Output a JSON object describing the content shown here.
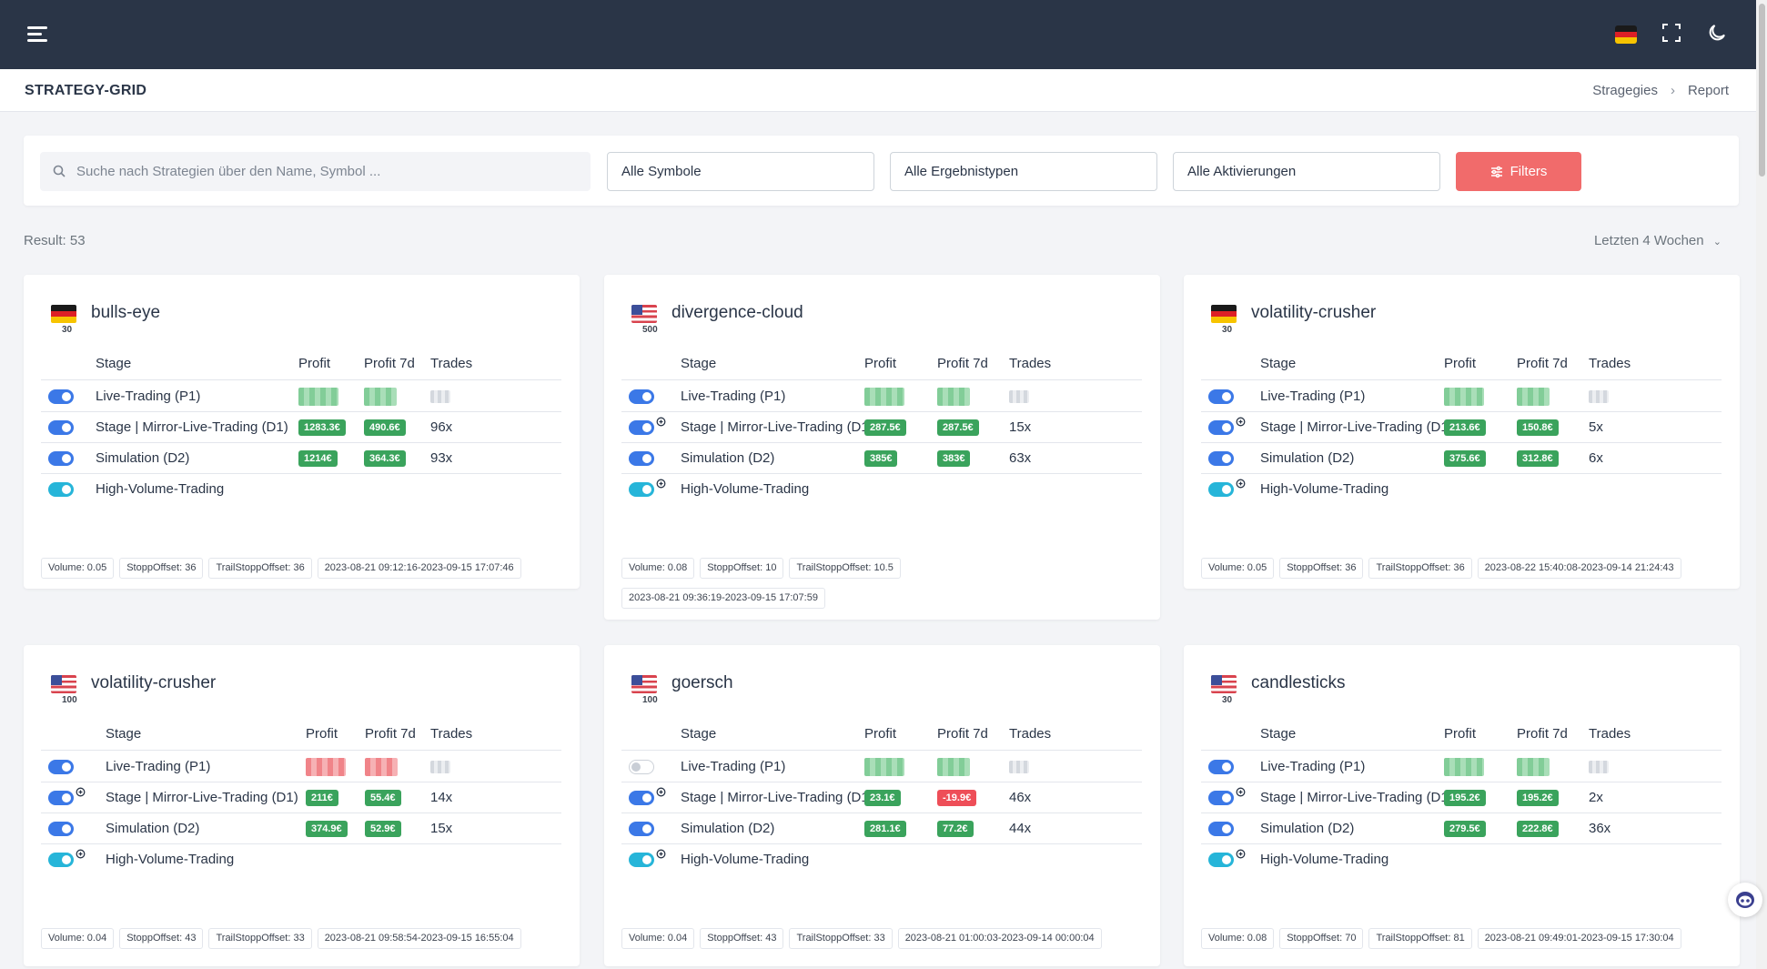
{
  "header": {
    "menu_icon": "hamburger-icon",
    "language_flag": "flag-de-icon",
    "fullscreen_icon": "fullscreen-icon",
    "theme_icon": "moon-icon"
  },
  "page": {
    "title": "STRATEGY-GRID",
    "breadcrumb": [
      "Stragegies",
      "Report"
    ]
  },
  "filters": {
    "search_placeholder": "Suche nach Strategien über den Name, Symbol ...",
    "symbols": "Alle Symbole",
    "result_types": "Alle Ergebnistypen",
    "activations": "Alle Aktivierungen",
    "filters_button": "Filters"
  },
  "result_label": "Result: 53",
  "period_label": "Letzten 4 Wochen",
  "table_headers": {
    "stage": "Stage",
    "profit": "Profit",
    "profit7d": "Profit 7d",
    "trades": "Trades"
  },
  "cards": [
    {
      "name": "bulls-eye",
      "flag": "de",
      "flag_badge": "30",
      "rows": [
        {
          "stage": "Live-Trading (P1)",
          "toggle": "on",
          "ext": false,
          "profit": null,
          "profit_color": "g",
          "profit7d": null,
          "p7_color": "g",
          "trades": null
        },
        {
          "stage": "Stage | Mirror-Live-Trading (D1)",
          "toggle": "on",
          "ext": false,
          "profit": "1283.3€",
          "profit_color": "g",
          "profit7d": "490.6€",
          "p7_color": "g",
          "trades": "96x"
        },
        {
          "stage": "Simulation (D2)",
          "toggle": "on",
          "ext": false,
          "profit": "1214€",
          "profit_color": "g",
          "profit7d": "364.3€",
          "p7_color": "g",
          "trades": "93x"
        },
        {
          "stage": "High-Volume-Trading",
          "toggle": "cyan",
          "ext": false,
          "profit": "",
          "profit7d": "",
          "trades": ""
        }
      ],
      "chips": [
        "Volume: 0.05",
        "StoppOffset: 36",
        "TrailStoppOffset: 36",
        "2023-08-21 09:12:16-2023-09-15 17:07:46"
      ]
    },
    {
      "name": "divergence-cloud",
      "flag": "us",
      "flag_badge": "500",
      "rows": [
        {
          "stage": "Live-Trading (P1)",
          "toggle": "on",
          "ext": false,
          "profit": null,
          "profit_color": "g",
          "profit7d": null,
          "p7_color": "g",
          "trades": null
        },
        {
          "stage": "Stage | Mirror-Live-Trading (D1)",
          "toggle": "on",
          "ext": true,
          "profit": "287.5€",
          "profit_color": "g",
          "profit7d": "287.5€",
          "p7_color": "g",
          "trades": "15x"
        },
        {
          "stage": "Simulation (D2)",
          "toggle": "on",
          "ext": false,
          "profit": "385€",
          "profit_color": "g",
          "profit7d": "383€",
          "p7_color": "g",
          "trades": "63x"
        },
        {
          "stage": "High-Volume-Trading",
          "toggle": "cyan",
          "ext": true,
          "profit": "",
          "profit7d": "",
          "trades": ""
        }
      ],
      "chips": [
        "Volume: 0.08",
        "StoppOffset: 10",
        "TrailStoppOffset: 10.5",
        "2023-08-21 09:36:19-2023-09-15 17:07:59"
      ]
    },
    {
      "name": "volatility-crusher",
      "flag": "de",
      "flag_badge": "30",
      "rows": [
        {
          "stage": "Live-Trading (P1)",
          "toggle": "on",
          "ext": false,
          "profit": null,
          "profit_color": "g",
          "profit7d": null,
          "p7_color": "g",
          "trades": null
        },
        {
          "stage": "Stage | Mirror-Live-Trading (D1)",
          "toggle": "on",
          "ext": true,
          "profit": "213.6€",
          "profit_color": "g",
          "profit7d": "150.8€",
          "p7_color": "g",
          "trades": "5x"
        },
        {
          "stage": "Simulation (D2)",
          "toggle": "on",
          "ext": false,
          "profit": "375.6€",
          "profit_color": "g",
          "profit7d": "312.8€",
          "p7_color": "g",
          "trades": "6x"
        },
        {
          "stage": "High-Volume-Trading",
          "toggle": "cyan",
          "ext": true,
          "profit": "",
          "profit7d": "",
          "trades": ""
        }
      ],
      "chips": [
        "Volume: 0.05",
        "StoppOffset: 36",
        "TrailStoppOffset: 36",
        "2023-08-22 15:40:08-2023-09-14 21:24:43"
      ]
    },
    {
      "name": "volatility-crusher",
      "flag": "us",
      "flag_badge": "100",
      "rows": [
        {
          "stage": "Live-Trading (P1)",
          "toggle": "on",
          "ext": false,
          "profit": null,
          "profit_color": "r",
          "profit7d": null,
          "p7_color": "r",
          "trades": null
        },
        {
          "stage": "Stage | Mirror-Live-Trading (D1)",
          "toggle": "on",
          "ext": true,
          "profit": "211€",
          "profit_color": "g",
          "profit7d": "55.4€",
          "p7_color": "g",
          "trades": "14x"
        },
        {
          "stage": "Simulation (D2)",
          "toggle": "on",
          "ext": false,
          "profit": "374.9€",
          "profit_color": "g",
          "profit7d": "52.9€",
          "p7_color": "g",
          "trades": "15x"
        },
        {
          "stage": "High-Volume-Trading",
          "toggle": "cyan",
          "ext": true,
          "profit": "",
          "profit7d": "",
          "trades": ""
        }
      ],
      "chips": [
        "Volume: 0.04",
        "StoppOffset: 43",
        "TrailStoppOffset: 33",
        "2023-08-21 09:58:54-2023-09-15 16:55:04"
      ]
    },
    {
      "name": "goersch",
      "flag": "us",
      "flag_badge": "100",
      "rows": [
        {
          "stage": "Live-Trading (P1)",
          "toggle": "off",
          "ext": false,
          "profit": null,
          "profit_color": "g",
          "profit7d": null,
          "p7_color": "g",
          "trades": null
        },
        {
          "stage": "Stage | Mirror-Live-Trading (D1)",
          "toggle": "on",
          "ext": true,
          "profit": "23.1€",
          "profit_color": "g",
          "profit7d": "-19.9€",
          "p7_color": "r",
          "trades": "46x"
        },
        {
          "stage": "Simulation (D2)",
          "toggle": "on",
          "ext": false,
          "profit": "281.1€",
          "profit_color": "g",
          "profit7d": "77.2€",
          "p7_color": "g",
          "trades": "44x"
        },
        {
          "stage": "High-Volume-Trading",
          "toggle": "cyan",
          "ext": true,
          "profit": "",
          "profit7d": "",
          "trades": ""
        }
      ],
      "chips": [
        "Volume: 0.04",
        "StoppOffset: 43",
        "TrailStoppOffset: 33",
        "2023-08-21 01:00:03-2023-09-14 00:00:04"
      ]
    },
    {
      "name": "candlesticks",
      "flag": "us",
      "flag_badge": "30",
      "rows": [
        {
          "stage": "Live-Trading (P1)",
          "toggle": "on",
          "ext": false,
          "profit": null,
          "profit_color": "g",
          "profit7d": null,
          "p7_color": "g",
          "trades": null
        },
        {
          "stage": "Stage | Mirror-Live-Trading (D1)",
          "toggle": "on",
          "ext": true,
          "profit": "195.2€",
          "profit_color": "g",
          "profit7d": "195.2€",
          "p7_color": "g",
          "trades": "2x"
        },
        {
          "stage": "Simulation (D2)",
          "toggle": "on",
          "ext": false,
          "profit": "279.5€",
          "profit_color": "g",
          "profit7d": "222.8€",
          "p7_color": "g",
          "trades": "36x"
        },
        {
          "stage": "High-Volume-Trading",
          "toggle": "cyan",
          "ext": true,
          "profit": "",
          "profit7d": "",
          "trades": ""
        }
      ],
      "chips": [
        "Volume: 0.08",
        "StoppOffset: 70",
        "TrailStoppOffset: 81",
        "2023-08-21 09:49:01-2023-09-15 17:30:04"
      ]
    }
  ],
  "colors": {
    "topbar": "#2a3547",
    "primary_toggle": "#3b78e7",
    "cyan_toggle": "#26b5d9",
    "profit_positive": "#3aa35c",
    "profit_negative": "#ee4e58",
    "filters_button": "#f16b6b"
  }
}
